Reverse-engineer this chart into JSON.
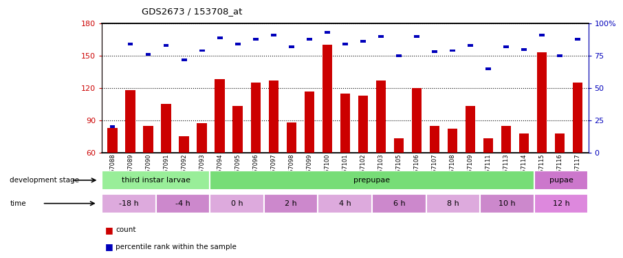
{
  "title": "GDS2673 / 153708_at",
  "samples": [
    "GSM67088",
    "GSM67089",
    "GSM67090",
    "GSM67091",
    "GSM67092",
    "GSM67093",
    "GSM67094",
    "GSM67095",
    "GSM67096",
    "GSM67097",
    "GSM67098",
    "GSM67099",
    "GSM67100",
    "GSM67101",
    "GSM67102",
    "GSM67103",
    "GSM67105",
    "GSM67106",
    "GSM67107",
    "GSM67108",
    "GSM67109",
    "GSM67111",
    "GSM67113",
    "GSM67114",
    "GSM67115",
    "GSM67116",
    "GSM67117"
  ],
  "counts": [
    83,
    118,
    85,
    105,
    75,
    87,
    128,
    103,
    125,
    127,
    88,
    117,
    160,
    115,
    113,
    127,
    73,
    120,
    85,
    82,
    103,
    73,
    85,
    78,
    153,
    78,
    125
  ],
  "percentile": [
    20,
    84,
    76,
    83,
    72,
    79,
    89,
    84,
    88,
    91,
    82,
    88,
    93,
    84,
    86,
    90,
    75,
    90,
    78,
    79,
    83,
    65,
    82,
    80,
    91,
    75,
    88
  ],
  "ylim_left": [
    60,
    180
  ],
  "ylim_right": [
    0,
    100
  ],
  "yticks_left": [
    60,
    90,
    120,
    150,
    180
  ],
  "yticks_right": [
    0,
    25,
    50,
    75,
    100
  ],
  "ytick_labels_right": [
    "0",
    "25",
    "50",
    "75",
    "100%"
  ],
  "bar_color": "#cc0000",
  "percentile_color": "#0000bb",
  "grid_color": "black",
  "bg_color": "#ffffff",
  "axis_label_color_left": "#cc0000",
  "axis_label_color_right": "#0000bb",
  "dev_stage_groups": [
    {
      "label": "third instar larvae",
      "start": 0,
      "end": 6,
      "color": "#99ee99"
    },
    {
      "label": "prepupae",
      "start": 6,
      "end": 24,
      "color": "#77dd77"
    },
    {
      "label": "pupae",
      "start": 24,
      "end": 27,
      "color": "#cc77cc"
    }
  ],
  "time_groups": [
    {
      "label": "-18 h",
      "start": 0,
      "end": 3
    },
    {
      "label": "-4 h",
      "start": 3,
      "end": 6
    },
    {
      "label": "0 h",
      "start": 6,
      "end": 9
    },
    {
      "label": "2 h",
      "start": 9,
      "end": 12
    },
    {
      "label": "4 h",
      "start": 12,
      "end": 15
    },
    {
      "label": "6 h",
      "start": 15,
      "end": 18
    },
    {
      "label": "8 h",
      "start": 18,
      "end": 21
    },
    {
      "label": "10 h",
      "start": 21,
      "end": 24
    },
    {
      "label": "12 h",
      "start": 24,
      "end": 27
    }
  ],
  "time_colors": [
    "#ddaadd",
    "#cc88cc",
    "#ddaadd",
    "#cc88cc",
    "#ddaadd",
    "#cc88cc",
    "#ddaadd",
    "#cc88cc",
    "#dd88dd"
  ],
  "legend_count_color": "#cc0000",
  "legend_percentile_color": "#0000bb",
  "bar_width": 0.55,
  "percentile_bar_width": 0.3,
  "percentile_bar_height": 2.5,
  "n_samples": 27
}
